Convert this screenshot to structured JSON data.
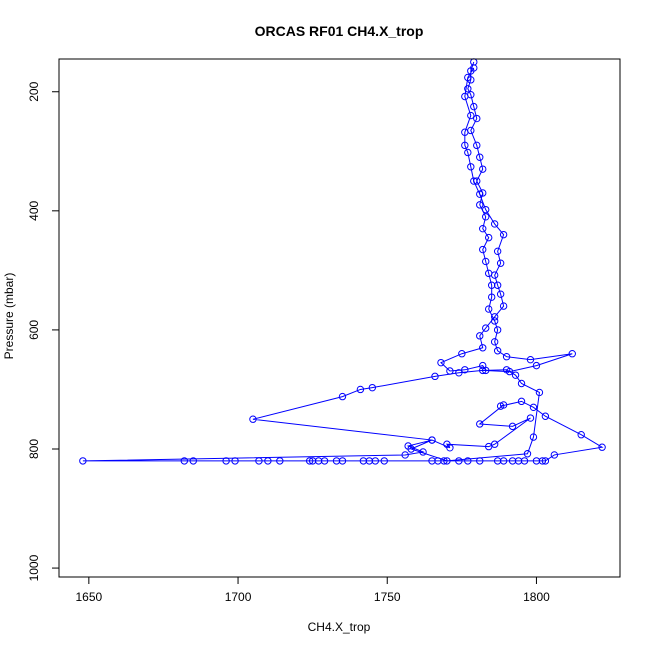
{
  "chart_data": {
    "type": "line",
    "title": "ORCAS RF01 CH4.X_trop",
    "xlabel": "CH4.X_trop",
    "ylabel": "Pressure (mbar)",
    "xlim": [
      1640,
      1828
    ],
    "ylim": [
      1015,
      145
    ],
    "y_reversed": true,
    "x_ticks": [
      1650,
      1700,
      1750,
      1800
    ],
    "y_ticks": [
      200,
      400,
      600,
      800,
      1000
    ],
    "grid": false,
    "legend": "none",
    "series": [
      {
        "color": "#0000ff",
        "marker": "open-circle",
        "points": [
          [
            1779,
            150
          ],
          [
            1778,
            165
          ],
          [
            1778,
            180
          ],
          [
            1777,
            195
          ],
          [
            1778,
            205
          ],
          [
            1779,
            225
          ],
          [
            1780,
            245
          ],
          [
            1778,
            265
          ],
          [
            1780,
            290
          ],
          [
            1781,
            310
          ],
          [
            1782,
            330
          ],
          [
            1780,
            350
          ],
          [
            1782,
            370
          ],
          [
            1781,
            390
          ],
          [
            1783,
            410
          ],
          [
            1782,
            430
          ],
          [
            1784,
            445
          ],
          [
            1782,
            465
          ],
          [
            1783,
            485
          ],
          [
            1784,
            505
          ],
          [
            1785,
            525
          ],
          [
            1785,
            545
          ],
          [
            1784,
            565
          ],
          [
            1786,
            585
          ],
          [
            1787,
            600
          ],
          [
            1786,
            620
          ],
          [
            1787,
            635
          ],
          [
            1790,
            645
          ],
          [
            1798,
            650
          ],
          [
            1812,
            640
          ],
          [
            1800,
            660
          ],
          [
            1791,
            670
          ],
          [
            1782,
            668
          ],
          [
            1774,
            672
          ],
          [
            1766,
            678
          ],
          [
            1745,
            697
          ],
          [
            1741,
            700
          ],
          [
            1735,
            712
          ],
          [
            1705,
            750
          ],
          [
            1765,
            785
          ],
          [
            1757,
            795
          ],
          [
            1762,
            805
          ],
          [
            1756,
            810
          ],
          [
            1648,
            820
          ],
          [
            1682,
            820
          ],
          [
            1685,
            820
          ],
          [
            1696,
            820
          ],
          [
            1699,
            820
          ],
          [
            1707,
            820
          ],
          [
            1710,
            820
          ],
          [
            1714,
            820
          ],
          [
            1724,
            820
          ],
          [
            1725,
            820
          ],
          [
            1727,
            820
          ],
          [
            1729,
            820
          ],
          [
            1733,
            820
          ],
          [
            1735,
            820
          ],
          [
            1742,
            820
          ],
          [
            1744,
            820
          ],
          [
            1746,
            820
          ],
          [
            1749,
            820
          ],
          [
            1765,
            820
          ],
          [
            1767,
            820
          ],
          [
            1769,
            820
          ],
          [
            1774,
            820
          ],
          [
            1777,
            820
          ],
          [
            1781,
            820
          ],
          [
            1787,
            820
          ],
          [
            1789,
            820
          ],
          [
            1792,
            820
          ],
          [
            1794,
            820
          ],
          [
            1796,
            820
          ],
          [
            1800,
            820
          ],
          [
            1802,
            820
          ],
          [
            1803,
            820
          ],
          [
            1806,
            810
          ],
          [
            1822,
            797
          ],
          [
            1815,
            776
          ],
          [
            1803,
            745
          ],
          [
            1799,
            730
          ],
          [
            1795,
            720
          ],
          [
            1788,
            728
          ],
          [
            1789,
            726
          ],
          [
            1781,
            758
          ],
          [
            1792,
            762
          ],
          [
            1798,
            748
          ],
          [
            1786,
            792
          ],
          [
            1784,
            796
          ],
          [
            1770,
            792
          ],
          [
            1771,
            798
          ],
          [
            1765,
            785
          ],
          [
            1758,
            800
          ],
          [
            1770,
            820
          ],
          [
            1797,
            808
          ],
          [
            1799,
            780
          ],
          [
            1801,
            705
          ],
          [
            1795,
            690
          ],
          [
            1793,
            676
          ],
          [
            1790,
            667
          ],
          [
            1783,
            668
          ],
          [
            1782,
            660
          ],
          [
            1776,
            667
          ],
          [
            1771,
            669
          ],
          [
            1768,
            655
          ],
          [
            1775,
            640
          ],
          [
            1782,
            630
          ],
          [
            1781,
            610
          ],
          [
            1783,
            597
          ],
          [
            1786,
            578
          ],
          [
            1789,
            560
          ],
          [
            1788,
            540
          ],
          [
            1787,
            525
          ],
          [
            1786,
            508
          ],
          [
            1788,
            488
          ],
          [
            1787,
            468
          ],
          [
            1789,
            440
          ],
          [
            1786,
            422
          ],
          [
            1783,
            398
          ],
          [
            1781,
            372
          ],
          [
            1779,
            350
          ],
          [
            1778,
            326
          ],
          [
            1777,
            302
          ],
          [
            1776,
            290
          ],
          [
            1776,
            268
          ],
          [
            1778,
            240
          ],
          [
            1776,
            208
          ],
          [
            1777,
            176
          ],
          [
            1779,
            160
          ]
        ]
      }
    ]
  }
}
